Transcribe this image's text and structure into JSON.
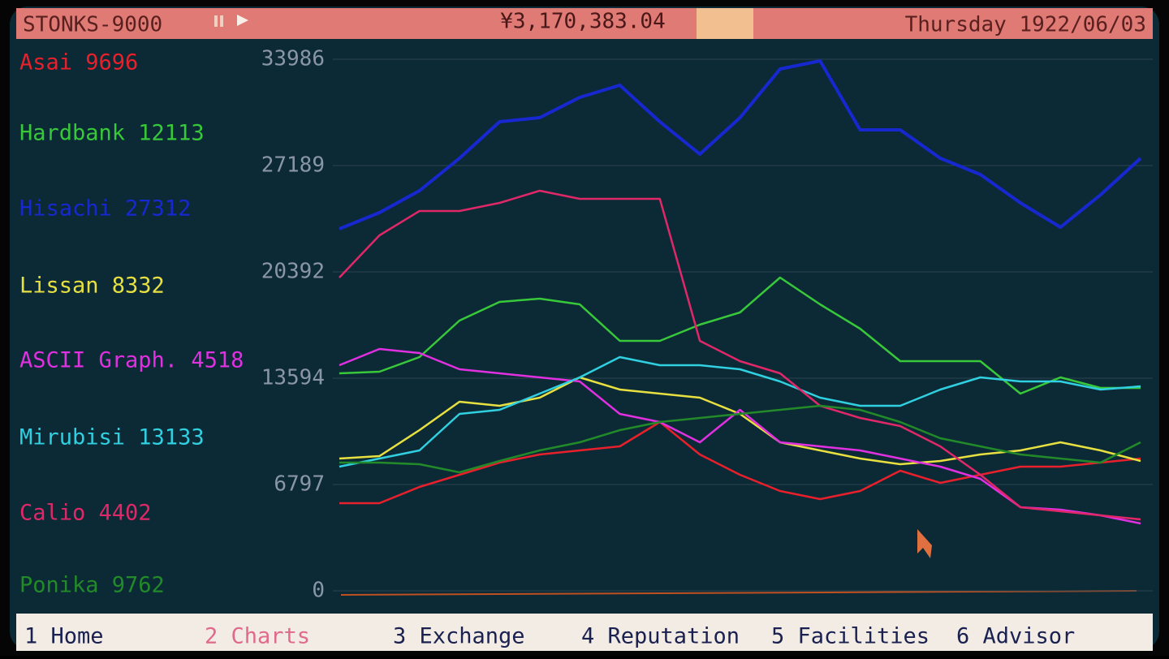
{
  "header": {
    "app": "STONKS-9000",
    "balance": "¥3,170,383.04",
    "date": "Thursday 1922/06/03"
  },
  "chart_data": {
    "type": "line",
    "ylim": [
      0,
      33986
    ],
    "yticks": [
      0,
      6797,
      13594,
      20392,
      27189,
      33986
    ],
    "grid": true,
    "series": [
      {
        "name": "Asai 9696",
        "color": "#e8202c",
        "values": [
          5604,
          5604,
          6642,
          7420,
          8199,
          8717,
          8977,
          9236,
          10793,
          8717,
          7420,
          6383,
          5864,
          6383,
          7680,
          6902,
          7420,
          7939,
          7939,
          8199,
          8458
        ]
      },
      {
        "name": "Hardbank 12113",
        "color": "#38c83a",
        "values": [
          13906,
          14010,
          14944,
          17279,
          18473,
          18680,
          18317,
          15982,
          15982,
          17020,
          17798,
          20028,
          18317,
          16761,
          14685,
          14685,
          14685,
          12609,
          13647,
          12972,
          12972
        ]
      },
      {
        "name": "Hisachi 27312",
        "color": "#1828d0",
        "values": [
          23141,
          24179,
          25580,
          27656,
          29991,
          30250,
          31548,
          32326,
          29991,
          27915,
          30250,
          33364,
          33883,
          29473,
          29473,
          27656,
          26618,
          24802,
          23245,
          25321,
          27656
        ]
      },
      {
        "name": "Lissan 8332",
        "color": "#e8e040",
        "values": [
          8458,
          8614,
          10274,
          12090,
          11831,
          12350,
          13647,
          12869,
          12609,
          12350,
          11312,
          9496,
          8977,
          8458,
          8095,
          8302,
          8717,
          8977,
          9496,
          8977,
          8302
        ]
      },
      {
        "name": "ASCII Graph. 4518",
        "color": "#e030e0",
        "values": [
          14425,
          15463,
          15204,
          14166,
          13906,
          13647,
          13388,
          11312,
          10793,
          9496,
          11571,
          9496,
          9236,
          8977,
          8458,
          7939,
          7161,
          5345,
          5189,
          4826,
          4307
        ]
      },
      {
        "name": "Mirubisi 13133",
        "color": "#30d0e0",
        "values": [
          7939,
          8458,
          8977,
          11312,
          11571,
          12609,
          13647,
          14944,
          14425,
          14425,
          14166,
          13388,
          12350,
          11831,
          11831,
          12869,
          13647,
          13388,
          13388,
          12869,
          13076
        ]
      },
      {
        "name": "Calio 4402",
        "color": "#e02868",
        "values": [
          20030,
          22727,
          24283,
          24283,
          24802,
          25581,
          25062,
          25062,
          25062,
          15982,
          14685,
          13906,
          11831,
          11053,
          10534,
          9236,
          7420,
          5345,
          5086,
          4826,
          4566
        ]
      },
      {
        "name": "Ponika 9762",
        "color": "#228a28",
        "values": [
          8199,
          8199,
          8095,
          7576,
          8302,
          8977,
          9496,
          10274,
          10793,
          11053,
          11312,
          11571,
          11831,
          11571,
          10793,
          9755,
          9236,
          8717,
          8458,
          8199,
          9496
        ]
      }
    ]
  },
  "footer": {
    "tabs": [
      "1 Home",
      "2 Charts",
      "3 Exchange",
      "4 Reputation",
      "5 Facilities",
      "6 Advisor"
    ]
  }
}
